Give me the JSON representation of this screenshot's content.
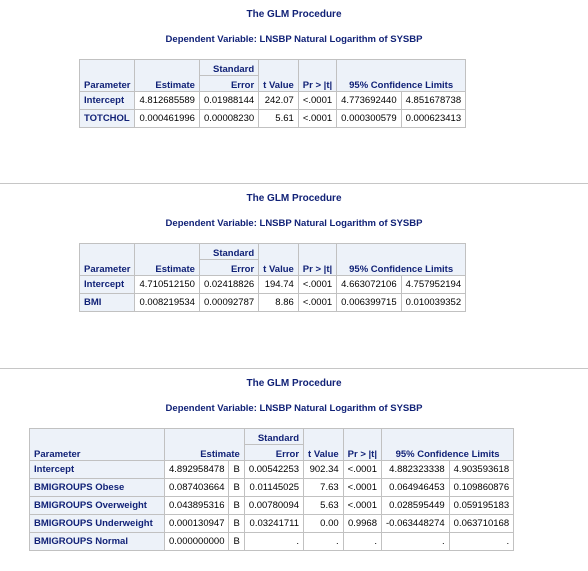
{
  "proc_title": "The GLM Procedure",
  "dep_var": "Dependent Variable: LNSBP Natural Logarithm of SYSBP",
  "headers": {
    "parameter": "Parameter",
    "estimate": "Estimate",
    "std_error_line1": "Standard",
    "std_error_line2": "Error",
    "t_value": "t Value",
    "pr_t": "Pr > |t|",
    "ci": "95% Confidence Limits"
  },
  "table1": {
    "rows": [
      {
        "param": "Intercept",
        "estimate": "4.812685589",
        "std_err": "0.01988144",
        "t": "242.07",
        "p": "<.0001",
        "lcl": "4.773692440",
        "ucl": "4.851678738"
      },
      {
        "param": "TOTCHOL",
        "estimate": "0.000461996",
        "std_err": "0.00008230",
        "t": "5.61",
        "p": "<.0001",
        "lcl": "0.000300579",
        "ucl": "0.000623413"
      }
    ]
  },
  "table2": {
    "rows": [
      {
        "param": "Intercept",
        "estimate": "4.710512150",
        "std_err": "0.02418826",
        "t": "194.74",
        "p": "<.0001",
        "lcl": "4.663072106",
        "ucl": "4.757952194"
      },
      {
        "param": "BMI",
        "estimate": "0.008219534",
        "std_err": "0.00092787",
        "t": "8.86",
        "p": "<.0001",
        "lcl": "0.006399715",
        "ucl": "0.010039352"
      }
    ]
  },
  "table3": {
    "rows": [
      {
        "param": "Intercept",
        "estimate": "4.892958478",
        "flag": "B",
        "std_err": "0.00542253",
        "t": "902.34",
        "p": "<.0001",
        "lcl": "4.882323338",
        "ucl": "4.903593618"
      },
      {
        "param": "BMIGROUPS Obese",
        "estimate": "0.087403664",
        "flag": "B",
        "std_err": "0.01145025",
        "t": "7.63",
        "p": "<.0001",
        "lcl": "0.064946453",
        "ucl": "0.109860876"
      },
      {
        "param": "BMIGROUPS Overweight",
        "estimate": "0.043895316",
        "flag": "B",
        "std_err": "0.00780094",
        "t": "5.63",
        "p": "<.0001",
        "lcl": "0.028595449",
        "ucl": "0.059195183"
      },
      {
        "param": "BMIGROUPS Underweight",
        "estimate": "0.000130947",
        "flag": "B",
        "std_err": "0.03241711",
        "t": "0.00",
        "p": "0.9968",
        "lcl": "-0.063448274",
        "ucl": "0.063710168"
      },
      {
        "param": "BMIGROUPS Normal",
        "estimate": "0.000000000",
        "flag": "B",
        "std_err": ".",
        "t": ".",
        "p": ".",
        "lcl": ".",
        "ucl": "."
      }
    ]
  }
}
